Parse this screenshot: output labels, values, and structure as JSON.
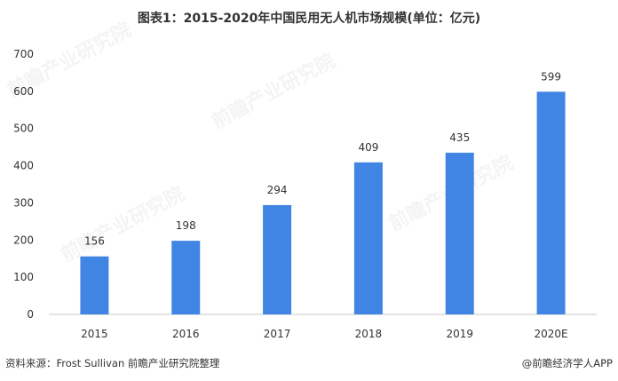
{
  "title": "图表1：2015-2020年中国民用无人机市场规模(单位：亿元)",
  "footer": {
    "source": "资料来源：Frost Sullivan 前瞻产业研究院整理",
    "credit": "@前瞻经济学人APP"
  },
  "watermark": "前瞻产业研究院",
  "colors": {
    "bar": "#4185e4",
    "axis": "#c8c8c8",
    "text": "#333333"
  },
  "chart_data": {
    "type": "bar",
    "categories": [
      "2015",
      "2016",
      "2017",
      "2018",
      "2019",
      "2020E"
    ],
    "values": [
      156,
      198,
      294,
      409,
      435,
      599
    ],
    "title": "图表1：2015-2020年中国民用无人机市场规模(单位：亿元)",
    "xlabel": "",
    "ylabel": "",
    "ylim": [
      0,
      700
    ],
    "yticks": [
      0,
      100,
      200,
      300,
      400,
      500,
      600,
      700
    ],
    "grid": false,
    "legend": "none",
    "data_labels": true
  }
}
